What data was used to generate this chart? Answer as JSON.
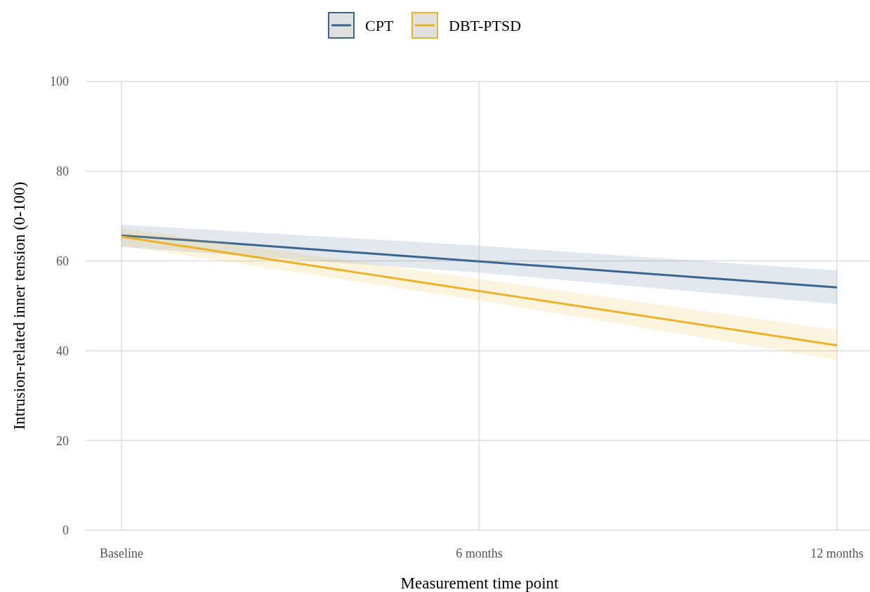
{
  "chart_data": {
    "type": "line",
    "xlabel": "Measurement time point",
    "ylabel": "Intrusion-related inner tension (0-100)",
    "categories": [
      "Baseline",
      "6 months",
      "12 months"
    ],
    "series": [
      {
        "name": "CPT",
        "color": "#3a6590",
        "values": [
          65.7,
          59.9,
          54.1
        ],
        "lower": [
          63.1,
          57.4,
          50.4
        ],
        "upper": [
          68.1,
          63.4,
          57.9
        ]
      },
      {
        "name": "DBT-PTSD",
        "color": "#ecb32a",
        "values": [
          65.4,
          53.3,
          41.2
        ],
        "lower": [
          63.4,
          51.2,
          37.9
        ],
        "upper": [
          67.3,
          56.0,
          44.6
        ]
      }
    ],
    "ylim": [
      0,
      100
    ],
    "yticks": [
      0,
      20,
      40,
      60,
      80,
      100
    ],
    "grid": true,
    "legend": "top",
    "marker": "none",
    "line_style": "solid"
  }
}
